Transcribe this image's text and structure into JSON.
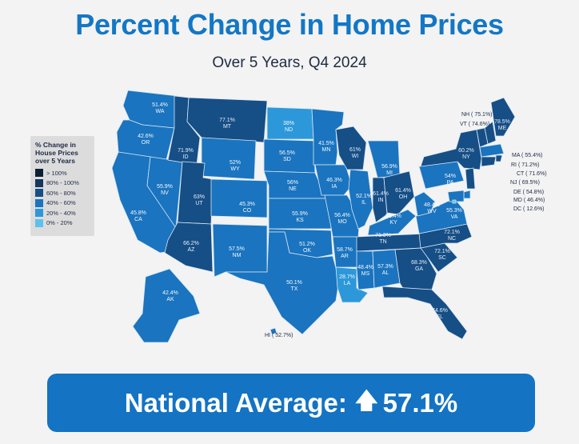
{
  "title": "Percent Change in Home Prices",
  "subtitle": "Over 5 Years, Q4 2024",
  "legend": {
    "title": "% Change in House Prices over 5 Years",
    "items": [
      {
        "label": "> 100%",
        "color": "#0d1f35"
      },
      {
        "label": "80% - 100%",
        "color": "#15365d"
      },
      {
        "label": "60% - 80%",
        "color": "#164e86"
      },
      {
        "label": "40% - 60%",
        "color": "#1a74bf"
      },
      {
        "label": "20% - 40%",
        "color": "#2c98da"
      },
      {
        "label": "0% - 20%",
        "color": "#5fc0ef"
      }
    ]
  },
  "states": [
    {
      "code": "WA",
      "value": "51.4%"
    },
    {
      "code": "OR",
      "value": "42.6%"
    },
    {
      "code": "CA",
      "value": "45.8%"
    },
    {
      "code": "NV",
      "value": "55.9%"
    },
    {
      "code": "ID",
      "value": "71.9%"
    },
    {
      "code": "MT",
      "value": "77.1%"
    },
    {
      "code": "WY",
      "value": "52%"
    },
    {
      "code": "UT",
      "value": "63%"
    },
    {
      "code": "AZ",
      "value": "66.2%"
    },
    {
      "code": "CO",
      "value": "45.3%"
    },
    {
      "code": "NM",
      "value": "57.5%"
    },
    {
      "code": "ND",
      "value": "38%"
    },
    {
      "code": "SD",
      "value": "56.5%"
    },
    {
      "code": "NE",
      "value": "56%"
    },
    {
      "code": "KS",
      "value": "55.9%"
    },
    {
      "code": "OK",
      "value": "51.2%"
    },
    {
      "code": "TX",
      "value": "50.1%"
    },
    {
      "code": "MN",
      "value": "41.5%"
    },
    {
      "code": "IA",
      "value": "46.3%"
    },
    {
      "code": "MO",
      "value": "56.4%"
    },
    {
      "code": "AR",
      "value": "58.7%"
    },
    {
      "code": "LA",
      "value": "28.7%"
    },
    {
      "code": "WI",
      "value": "61%"
    },
    {
      "code": "IL",
      "value": "52.1%"
    },
    {
      "code": "MI",
      "value": "56.9%"
    },
    {
      "code": "IN",
      "value": "61.4%"
    },
    {
      "code": "OH",
      "value": "61.4%"
    },
    {
      "code": "KY",
      "value": "58.4%"
    },
    {
      "code": "TN",
      "value": "71.3%"
    },
    {
      "code": "MS",
      "value": "48.4%"
    },
    {
      "code": "AL",
      "value": "57.3%"
    },
    {
      "code": "GA",
      "value": "68.3%"
    },
    {
      "code": "FL",
      "value": "74.6%"
    },
    {
      "code": "SC",
      "value": "72.1%"
    },
    {
      "code": "NC",
      "value": "72.1%"
    },
    {
      "code": "VA",
      "value": "55.3%"
    },
    {
      "code": "WV",
      "value": "48.4%"
    },
    {
      "code": "PA",
      "value": "54%"
    },
    {
      "code": "NY",
      "value": "60.2%"
    },
    {
      "code": "ME",
      "value": "78.5%"
    },
    {
      "code": "AK",
      "value": "42.4%"
    },
    {
      "code": "HI",
      "value": "52.7%"
    },
    {
      "code": "NH",
      "value": "75.1%"
    },
    {
      "code": "VT",
      "value": "74.6%"
    },
    {
      "code": "MA",
      "value": "55.4%"
    },
    {
      "code": "RI",
      "value": "71.2%"
    },
    {
      "code": "CT",
      "value": "71.6%"
    },
    {
      "code": "NJ",
      "value": "69.5%"
    },
    {
      "code": "DE",
      "value": "54.8%"
    },
    {
      "code": "MD",
      "value": "46.4%"
    },
    {
      "code": "DC",
      "value": "12.6%"
    }
  ],
  "banner": {
    "label": "National Average:",
    "value": "57.1%"
  }
}
